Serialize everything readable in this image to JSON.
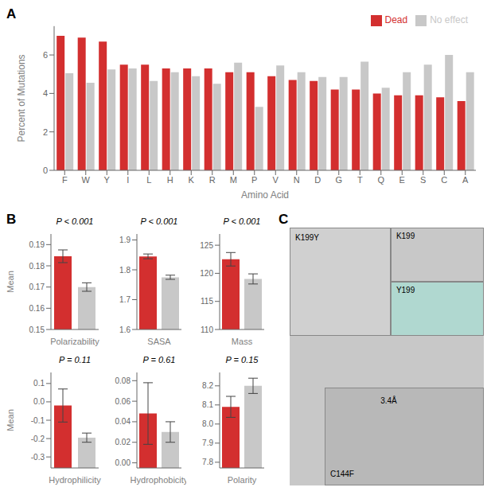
{
  "chart_data": [
    {
      "type": "bar",
      "annotations": [
        "A"
      ],
      "categories": [
        "F",
        "W",
        "Y",
        "I",
        "L",
        "H",
        "K",
        "R",
        "M",
        "P",
        "V",
        "N",
        "D",
        "G",
        "T",
        "Q",
        "E",
        "S",
        "C",
        "A"
      ],
      "series": [
        {
          "name": "Dead",
          "color": "#d32f2f",
          "values": [
            7.0,
            6.9,
            6.7,
            5.5,
            5.5,
            5.3,
            5.3,
            5.3,
            5.1,
            5.1,
            4.9,
            4.7,
            4.65,
            4.2,
            4.2,
            4.0,
            3.9,
            3.9,
            3.8,
            3.6
          ]
        },
        {
          "name": "No effect",
          "color": "#c8c8c8",
          "values": [
            5.05,
            4.55,
            5.25,
            5.3,
            4.65,
            5.1,
            4.9,
            4.5,
            5.6,
            3.3,
            5.45,
            5.1,
            4.85,
            4.85,
            5.65,
            4.3,
            5.1,
            5.5,
            6.0,
            5.1
          ]
        }
      ],
      "xlabel": "Amino Acid",
      "ylabel": "Percent of Mutations",
      "ylim": [
        0,
        7.5
      ],
      "yticks": [
        0,
        2,
        4,
        6
      ],
      "legend": "upper right",
      "grid": false
    },
    {
      "type": "bar",
      "annotations": [
        "B"
      ],
      "title": "P < 0.001",
      "xlabel": "Polarizability",
      "ylabel": "Mean",
      "categories": [
        null,
        null
      ],
      "values": [
        0.1845,
        0.17
      ],
      "errors": [
        0.003,
        0.002
      ],
      "colors": [
        "#d32f2f",
        "#c8c8c8"
      ],
      "ylim": [
        0.15,
        0.195
      ],
      "yticks": [
        0.15,
        0.16,
        0.17,
        0.18,
        0.19
      ],
      "tick_labels": "y",
      "grid": false
    },
    {
      "type": "bar",
      "title": "P < 0.001",
      "xlabel": "SASA",
      "categories": [
        null,
        null
      ],
      "values": [
        1.845,
        1.775
      ],
      "errors": [
        0.008,
        0.007
      ],
      "colors": [
        "#d32f2f",
        "#c8c8c8"
      ],
      "ylim": [
        1.6,
        1.92
      ],
      "yticks": [
        1.6,
        1.7,
        1.8,
        1.9
      ],
      "tick_labels": "y",
      "grid": false
    },
    {
      "type": "bar",
      "title": "P < 0.001",
      "xlabel": "Mass",
      "categories": [
        null,
        null
      ],
      "values": [
        122.5,
        119.0
      ],
      "errors": [
        1.2,
        0.9
      ],
      "colors": [
        "#d32f2f",
        "#c8c8c8"
      ],
      "ylim": [
        110,
        127
      ],
      "yticks": [
        110,
        115,
        120,
        125
      ],
      "tick_labels": "y",
      "grid": false
    },
    {
      "type": "bar",
      "title": "P = 0.11",
      "xlabel": "Hydrophilicity",
      "ylabel": "Mean",
      "categories": [
        null,
        null
      ],
      "values": [
        -0.02,
        -0.195
      ],
      "errors": [
        0.09,
        0.025
      ],
      "colors": [
        "#d32f2f",
        "#c8c8c8"
      ],
      "ylim": [
        -0.36,
        0.16
      ],
      "yticks": [
        -0.3,
        -0.2,
        -0.1,
        {
          "value": 0,
          "label": "0.0"
        },
        0.1
      ],
      "tick_labels": "y",
      "grid": false
    },
    {
      "type": "bar",
      "title": "P = 0.61",
      "xlabel": "Hydrophobicity",
      "categories": [
        null,
        null
      ],
      "values": [
        0.048,
        0.03
      ],
      "errors": [
        0.03,
        0.01
      ],
      "colors": [
        "#d32f2f",
        "#c8c8c8"
      ],
      "ylim": [
        -0.005,
        0.088
      ],
      "yticks": [
        {
          "value": 0,
          "label": "0.00"
        },
        0.02,
        0.04,
        0.06,
        0.08
      ],
      "tick_labels": "y",
      "grid": false
    },
    {
      "type": "bar",
      "title": "P = 0.15",
      "xlabel": "Polarity",
      "categories": [
        null,
        null
      ],
      "values": [
        8.09,
        8.2
      ],
      "errors": [
        0.055,
        0.04
      ],
      "colors": [
        "#d32f2f",
        "#c8c8c8"
      ],
      "ylim": [
        7.77,
        8.27
      ],
      "yticks": [
        7.8,
        7.9,
        {
          "value": 8,
          "label": "8.0"
        },
        8.1,
        8.2
      ],
      "tick_labels": "y",
      "grid": false
    },
    {
      "type": "image",
      "annotations": [
        "C",
        "K199Y",
        "K199",
        "Y199",
        "C144F",
        "3.4Å"
      ]
    }
  ]
}
